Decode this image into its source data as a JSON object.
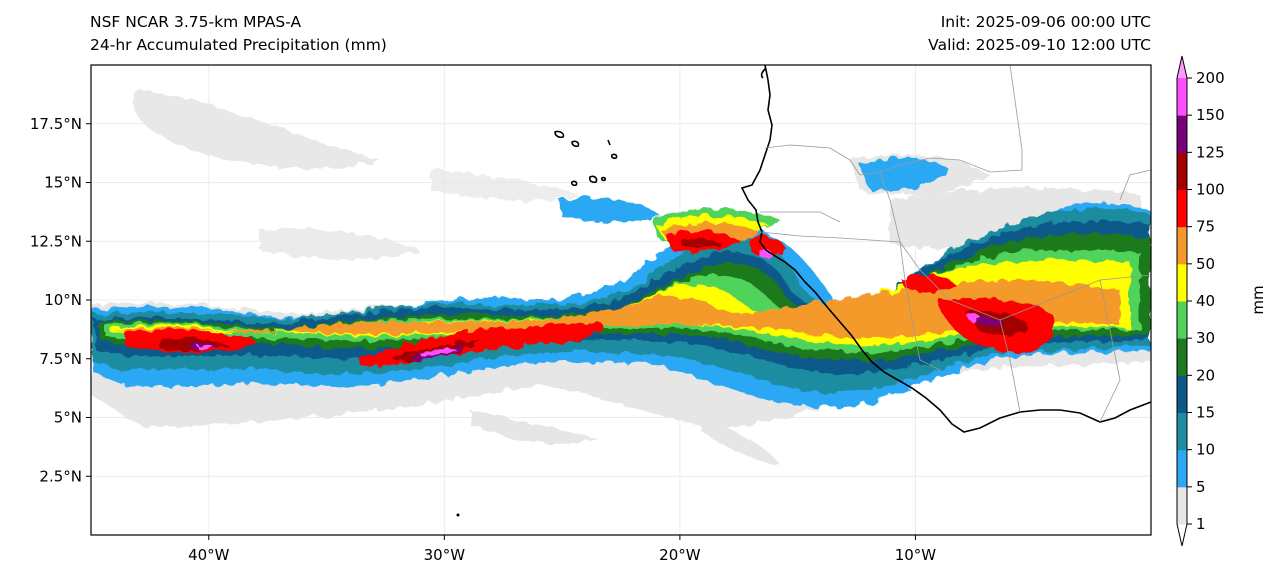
{
  "header": {
    "model": "NSF NCAR 3.75-km MPAS-A",
    "field": "24-hr Accumulated Precipitation (mm)",
    "init": "Init: 2025-09-06 00:00 UTC",
    "valid": "Valid: 2025-09-10 12:00 UTC"
  },
  "map": {
    "extent": {
      "lon_min": -45,
      "lon_max": 0,
      "lat_min": 0,
      "lat_max": 20
    },
    "lat_ticks": [
      {
        "value": 2.5,
        "label": "2.5°N"
      },
      {
        "value": 5,
        "label": "5°N"
      },
      {
        "value": 7.5,
        "label": "7.5°N"
      },
      {
        "value": 10,
        "label": "10°N"
      },
      {
        "value": 12.5,
        "label": "12.5°N"
      },
      {
        "value": 15,
        "label": "15°N"
      },
      {
        "value": 17.5,
        "label": "17.5°N"
      }
    ],
    "lon_ticks": [
      {
        "value": -40,
        "label": "40°W"
      },
      {
        "value": -30,
        "label": "30°W"
      },
      {
        "value": -20,
        "label": "20°W"
      },
      {
        "value": -10,
        "label": "10°W"
      }
    ],
    "gridlines": true
  },
  "colorbar": {
    "units_label": "mm",
    "tick_labels": [
      "1",
      "5",
      "10",
      "15",
      "20",
      "30",
      "40",
      "50",
      "75",
      "100",
      "125",
      "150",
      "200"
    ],
    "bins": [
      {
        "color": "#e6e6e6"
      },
      {
        "color": "#2ca8f4"
      },
      {
        "color": "#1e8da0"
      },
      {
        "color": "#0b5a8a"
      },
      {
        "color": "#1f7a1f"
      },
      {
        "color": "#4fd35a"
      },
      {
        "color": "#ffff00"
      },
      {
        "color": "#f39a2b"
      },
      {
        "color": "#ff0000"
      },
      {
        "color": "#a30000"
      },
      {
        "color": "#7a007a"
      },
      {
        "color": "#ff4fff"
      }
    ],
    "extend_max_color": "#ff9cff",
    "extend_min_color": "#ffffff"
  }
}
